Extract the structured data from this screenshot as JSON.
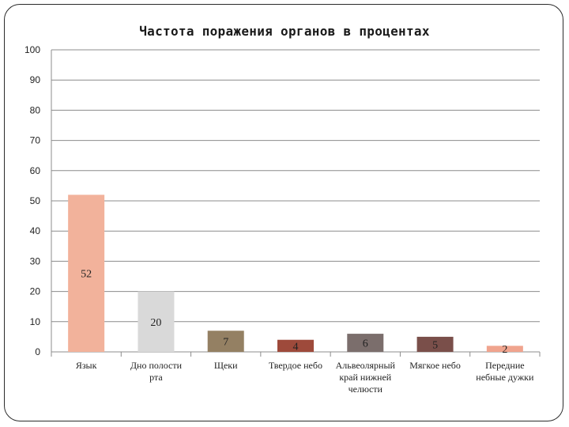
{
  "chart_data": {
    "type": "bar",
    "title": "Частота поражения органов в процентах",
    "xlabel": "",
    "ylabel": "",
    "ylim": [
      0,
      100
    ],
    "yticks": [
      0,
      10,
      20,
      30,
      40,
      50,
      60,
      70,
      80,
      90,
      100
    ],
    "grid": true,
    "categories": [
      [
        "Язык"
      ],
      [
        "Дно полости",
        "рта"
      ],
      [
        "Щеки"
      ],
      [
        "Твердое небо"
      ],
      [
        "Альвеолярный",
        "край нижней",
        "челюсти"
      ],
      [
        "Мягкое небо"
      ],
      [
        "Передние",
        "небные дужки"
      ]
    ],
    "values": [
      52,
      20,
      7,
      4,
      6,
      5,
      2
    ],
    "colors": [
      "#f2b29b",
      "#d9d9d9",
      "#948063",
      "#9e4a3b",
      "#7b6e6c",
      "#7a4f4a",
      "#f0a48e"
    ]
  }
}
